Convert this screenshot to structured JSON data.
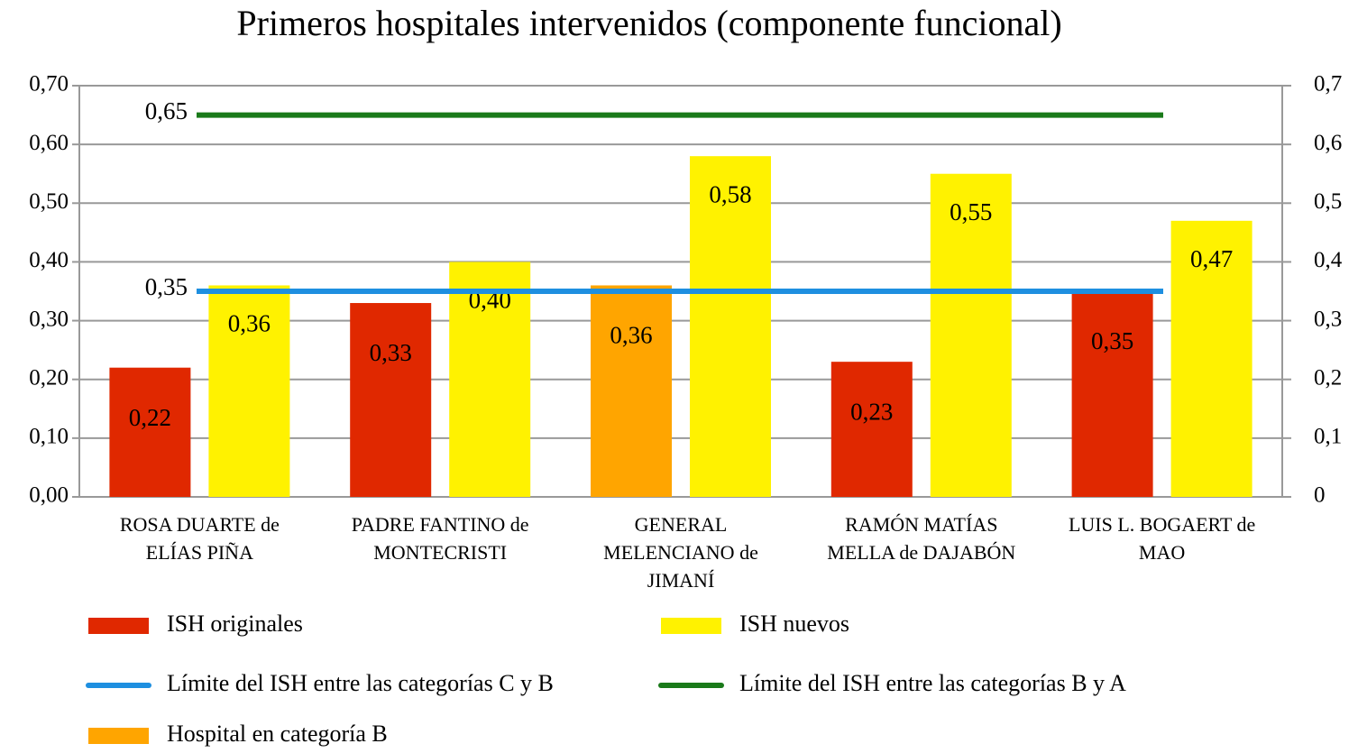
{
  "chart_data": {
    "type": "bar",
    "title": "Primeros hospitales intervenidos (componente funcional)",
    "categories": [
      "ROSA DUARTE de\nELÍAS PIÑA",
      "PADRE FANTINO de\nMONTECRISTI",
      "GENERAL\nMELENCIANO de\nJIMANÍ",
      "RAMÓN MATÍAS\nMELLA de DAJABÓN",
      "LUIS L. BOGAERT de\nMAO"
    ],
    "series": [
      {
        "name": "ISH originales",
        "color": "#e02800",
        "values": [
          0.22,
          0.33,
          null,
          0.23,
          0.35
        ],
        "value_labels": [
          "0,22",
          "0,33",
          null,
          "0,23",
          "0,35"
        ]
      },
      {
        "name": "ISH nuevos",
        "color": "#fff200",
        "values": [
          0.36,
          0.4,
          0.58,
          0.55,
          0.47
        ],
        "value_labels": [
          "0,36",
          "0,40",
          "0,58",
          "0,55",
          "0,47"
        ]
      },
      {
        "name": "Hospital en categoría B",
        "color": "#ffa500",
        "values": [
          null,
          null,
          0.36,
          null,
          null
        ],
        "value_labels": [
          null,
          null,
          "0,36",
          null,
          null
        ]
      }
    ],
    "reference_lines": [
      {
        "name": "Límite del ISH entre las categorías C y B",
        "color": "#1e8fe0",
        "value": 0.35,
        "label": "0,35"
      },
      {
        "name": "Límite del ISH entre las categorías B y A",
        "color": "#1a7a1a",
        "value": 0.65,
        "label": "0,65"
      }
    ],
    "ylim": [
      0,
      0.7
    ],
    "yticks": [
      {
        "value": 0,
        "label": "0,00"
      },
      {
        "value": 0.1,
        "label": "0,10"
      },
      {
        "value": 0.2,
        "label": "0,20"
      },
      {
        "value": 0.3,
        "label": "0,30"
      },
      {
        "value": 0.4,
        "label": "0,40"
      },
      {
        "value": 0.5,
        "label": "0,50"
      },
      {
        "value": 0.6,
        "label": "0,60"
      },
      {
        "value": 0.7,
        "label": "0,70"
      }
    ],
    "y2lim": [
      0,
      0.7
    ],
    "y2ticks": [
      0,
      {
        "value": 0.1,
        "label": "0,1"
      },
      {
        "value": 0.2,
        "label": "0,2"
      },
      {
        "value": 0.3,
        "label": "0,3"
      },
      {
        "value": 0.4,
        "label": "0,4"
      },
      {
        "value": 0.5,
        "label": "0,5"
      },
      {
        "value": 0.6,
        "label": "0,6"
      },
      {
        "value": 0.7,
        "label": "0,7"
      }
    ],
    "grid": true
  }
}
